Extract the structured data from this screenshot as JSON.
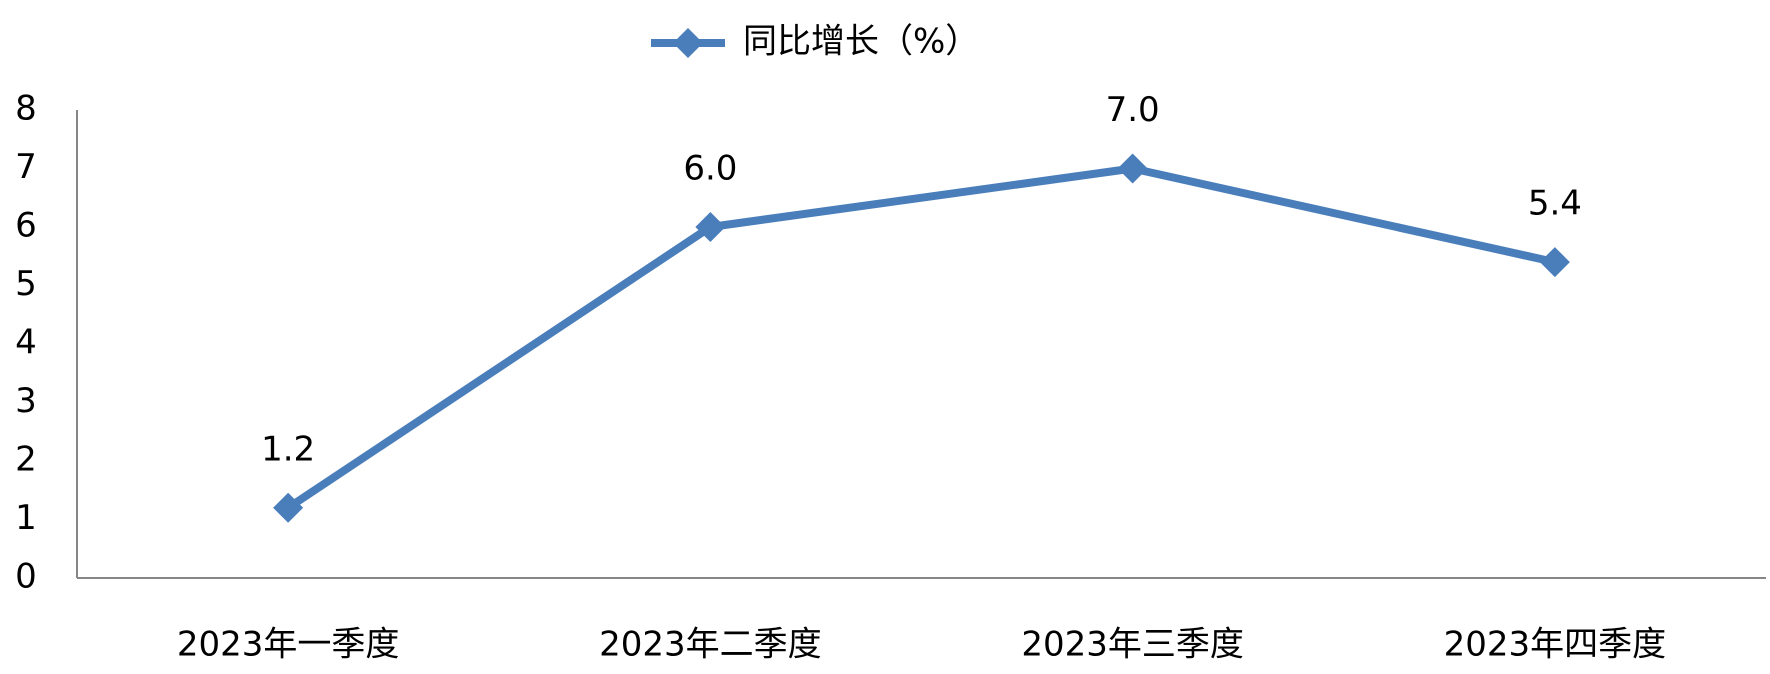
{
  "chart_data": {
    "type": "line",
    "categories": [
      "2023年一季度",
      "2023年二季度",
      "2023年三季度",
      "2023年四季度"
    ],
    "series": [
      {
        "name": "同比增长（%）",
        "color": "#4a7ebb",
        "values": [
          1.2,
          6,
          7,
          5.4
        ],
        "value_labels": [
          "1.2",
          "6.0",
          "7.0",
          "5.4"
        ]
      }
    ],
    "ylim": [
      0,
      8
    ],
    "yticks": [
      0,
      1,
      2,
      3,
      4,
      5,
      6,
      7,
      8
    ],
    "grid": false,
    "legend": "top"
  }
}
